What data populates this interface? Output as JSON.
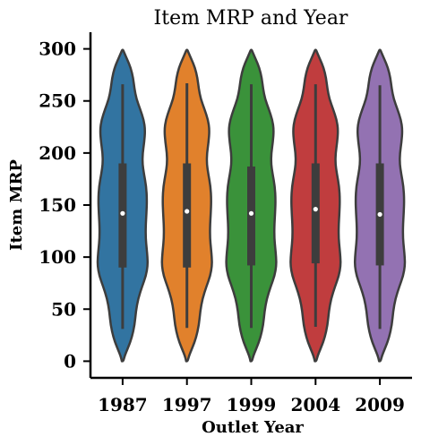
{
  "chart_data": {
    "type": "violin",
    "title": "Item MRP  and Year",
    "xlabel": "Outlet Year",
    "ylabel": "Item MRP",
    "categories": [
      "1987",
      "1997",
      "1999",
      "2004",
      "2009"
    ],
    "ylim": [
      -16,
      316
    ],
    "yticks": [
      0,
      50,
      100,
      150,
      200,
      250,
      300
    ],
    "grid": false,
    "colors": [
      "#3274a1",
      "#e1812c",
      "#3a923a",
      "#c03d3e",
      "#9372b2"
    ],
    "stats": [
      {
        "category": "1987",
        "min": 31,
        "q1": 90,
        "median": 142,
        "q3": 190,
        "max": 266
      },
      {
        "category": "1997",
        "min": 32,
        "q1": 90,
        "median": 144,
        "q3": 190,
        "max": 267
      },
      {
        "category": "1999",
        "min": 32,
        "q1": 92,
        "median": 142,
        "q3": 187,
        "max": 266
      },
      {
        "category": "2004",
        "min": 33,
        "q1": 94,
        "median": 146,
        "q3": 190,
        "max": 266
      },
      {
        "category": "2009",
        "min": 31,
        "q1": 92,
        "median": 141,
        "q3": 190,
        "max": 265
      }
    ],
    "density_y": [
      0,
      5,
      12,
      22,
      35,
      48,
      60,
      72,
      82,
      92,
      100,
      108,
      118,
      130,
      142,
      155,
      168,
      180,
      190,
      200,
      210,
      222,
      232,
      242,
      252,
      262,
      272,
      282,
      290,
      296,
      299
    ],
    "density": [
      [
        0.03,
        0.08,
        0.2,
        0.36,
        0.48,
        0.53,
        0.62,
        0.78,
        0.93,
        1.0,
        0.99,
        0.96,
        0.92,
        0.92,
        0.95,
        0.97,
        0.94,
        0.85,
        0.79,
        0.8,
        0.86,
        0.9,
        0.84,
        0.7,
        0.55,
        0.47,
        0.42,
        0.32,
        0.18,
        0.07,
        0.02
      ],
      [
        0.03,
        0.08,
        0.2,
        0.36,
        0.48,
        0.53,
        0.62,
        0.78,
        0.93,
        1.0,
        0.99,
        0.96,
        0.92,
        0.92,
        0.95,
        0.97,
        0.94,
        0.85,
        0.79,
        0.8,
        0.86,
        0.9,
        0.84,
        0.7,
        0.55,
        0.47,
        0.42,
        0.32,
        0.18,
        0.07,
        0.02
      ],
      [
        0.03,
        0.08,
        0.2,
        0.36,
        0.48,
        0.53,
        0.62,
        0.78,
        0.93,
        1.0,
        0.99,
        0.96,
        0.92,
        0.92,
        0.95,
        0.97,
        0.94,
        0.85,
        0.79,
        0.8,
        0.86,
        0.9,
        0.84,
        0.7,
        0.55,
        0.47,
        0.42,
        0.32,
        0.18,
        0.07,
        0.02
      ],
      [
        0.03,
        0.08,
        0.2,
        0.36,
        0.48,
        0.53,
        0.62,
        0.78,
        0.93,
        1.0,
        0.99,
        0.96,
        0.92,
        0.92,
        0.95,
        0.97,
        0.94,
        0.85,
        0.79,
        0.8,
        0.86,
        0.9,
        0.84,
        0.7,
        0.55,
        0.47,
        0.42,
        0.32,
        0.18,
        0.07,
        0.02
      ],
      [
        0.03,
        0.08,
        0.2,
        0.36,
        0.48,
        0.53,
        0.62,
        0.78,
        0.93,
        1.0,
        0.99,
        0.96,
        0.92,
        0.92,
        0.95,
        0.97,
        0.94,
        0.85,
        0.79,
        0.8,
        0.86,
        0.9,
        0.84,
        0.7,
        0.55,
        0.47,
        0.42,
        0.32,
        0.18,
        0.07,
        0.02
      ]
    ]
  }
}
